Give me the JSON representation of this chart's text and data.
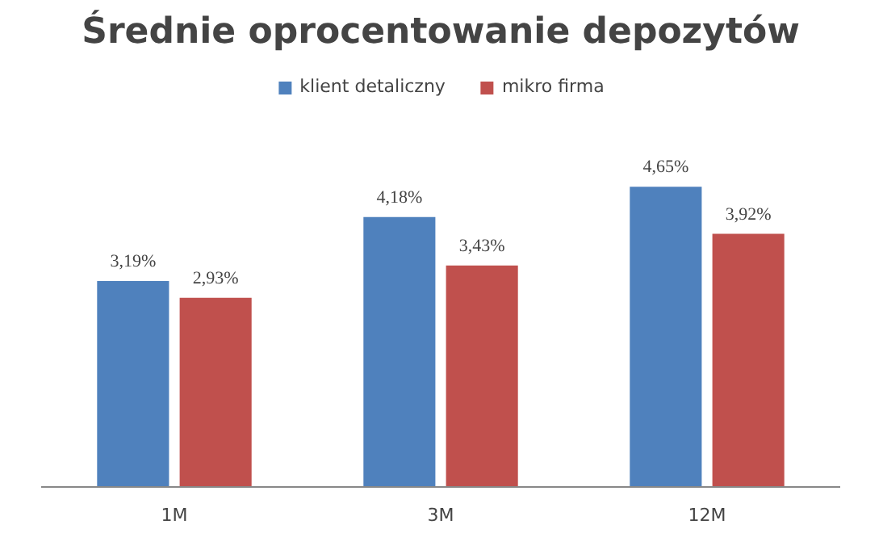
{
  "chart_data": {
    "type": "bar",
    "title": "Średnie oprocentowanie depozytów",
    "categories": [
      "1M",
      "3M",
      "12M"
    ],
    "series": [
      {
        "name": "klient detaliczny",
        "color": "#4f81bd",
        "values": [
          3.19,
          4.18,
          4.65
        ],
        "value_labels": [
          "3,19%",
          "4,18%",
          "4,65%"
        ]
      },
      {
        "name": "mikro firma",
        "color": "#c0504d",
        "values": [
          2.93,
          3.43,
          3.92
        ],
        "value_labels": [
          "2,93%",
          "3,43%",
          "3,92%"
        ]
      }
    ],
    "legend": "top",
    "grid": false
  }
}
